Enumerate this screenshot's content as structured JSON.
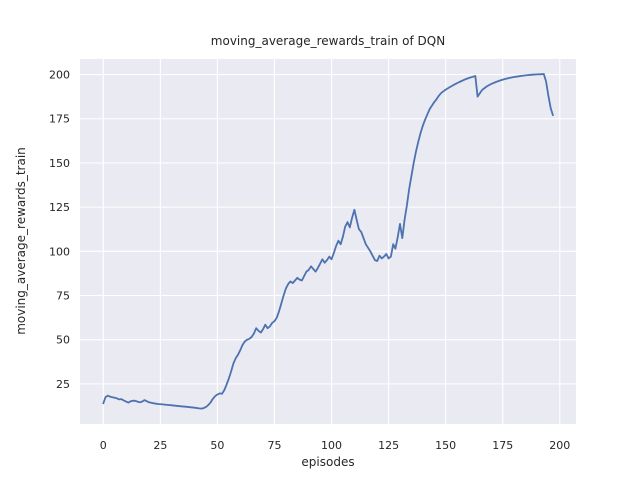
{
  "chart_data": {
    "type": "line",
    "title": "moving_average_rewards_train of DQN",
    "xlabel": "episodes",
    "ylabel": "moving_average_rewards_train",
    "x_ticks": [
      0,
      25,
      50,
      75,
      100,
      125,
      150,
      175,
      200
    ],
    "y_ticks": [
      25,
      50,
      75,
      100,
      125,
      150,
      175,
      200
    ],
    "xlim": [
      -10.2,
      207.1
    ],
    "ylim": [
      2.3,
      208.8
    ],
    "grid": true,
    "legend_position": "none",
    "style": {
      "figure_bg": "#ffffff",
      "plot_bg": "#eaeaf2",
      "grid_color": "#ffffff",
      "line_color": "#4c72b0",
      "text_color": "#262626",
      "line_width": 1.8
    },
    "series": [
      {
        "name": "moving_average_rewards_train",
        "points": [
          [
            0,
            14.0
          ],
          [
            1,
            17.6
          ],
          [
            2,
            18.3
          ],
          [
            3,
            17.8
          ],
          [
            4,
            17.4
          ],
          [
            5,
            17.2
          ],
          [
            6,
            16.8
          ],
          [
            7,
            16.2
          ],
          [
            8,
            16.4
          ],
          [
            9,
            15.6
          ],
          [
            10,
            15.0
          ],
          [
            11,
            14.4
          ],
          [
            12,
            15.2
          ],
          [
            13,
            15.5
          ],
          [
            14,
            15.4
          ],
          [
            15,
            15.0
          ],
          [
            16,
            14.6
          ],
          [
            17,
            15.0
          ],
          [
            18,
            15.8
          ],
          [
            19,
            15.2
          ],
          [
            20,
            14.6
          ],
          [
            21,
            14.3
          ],
          [
            22,
            14.0
          ],
          [
            24,
            13.6
          ],
          [
            26,
            13.4
          ],
          [
            28,
            13.1
          ],
          [
            30,
            12.9
          ],
          [
            32,
            12.6
          ],
          [
            34,
            12.3
          ],
          [
            36,
            12.1
          ],
          [
            38,
            11.8
          ],
          [
            40,
            11.5
          ],
          [
            42,
            11.1
          ],
          [
            43,
            11.0
          ],
          [
            44,
            11.3
          ],
          [
            45,
            12.0
          ],
          [
            46,
            13.0
          ],
          [
            47,
            14.5
          ],
          [
            48,
            16.5
          ],
          [
            49,
            18.0
          ],
          [
            50,
            19.0
          ],
          [
            51,
            19.6
          ],
          [
            52,
            19.4
          ],
          [
            53,
            21.5
          ],
          [
            54,
            24.5
          ],
          [
            55,
            28.0
          ],
          [
            56,
            32.0
          ],
          [
            57,
            36.5
          ],
          [
            58,
            39.5
          ],
          [
            59,
            41.5
          ],
          [
            60,
            44.0
          ],
          [
            61,
            47.0
          ],
          [
            62,
            49.0
          ],
          [
            63,
            50.0
          ],
          [
            64,
            50.5
          ],
          [
            65,
            51.5
          ],
          [
            66,
            53.5
          ],
          [
            67,
            56.5
          ],
          [
            68,
            55.0
          ],
          [
            69,
            54.0
          ],
          [
            70,
            56.0
          ],
          [
            71,
            58.5
          ],
          [
            72,
            56.5
          ],
          [
            73,
            57.5
          ],
          [
            74,
            59.5
          ],
          [
            75,
            60.5
          ],
          [
            76,
            62.5
          ],
          [
            77,
            66.0
          ],
          [
            78,
            70.5
          ],
          [
            79,
            75.0
          ],
          [
            80,
            79.0
          ],
          [
            81,
            81.5
          ],
          [
            82,
            83.0
          ],
          [
            83,
            82.0
          ],
          [
            84,
            83.5
          ],
          [
            85,
            85.0
          ],
          [
            86,
            84.0
          ],
          [
            87,
            83.5
          ],
          [
            88,
            86.0
          ],
          [
            89,
            88.5
          ],
          [
            90,
            89.5
          ],
          [
            91,
            91.5
          ],
          [
            92,
            90.0
          ],
          [
            93,
            88.5
          ],
          [
            94,
            90.5
          ],
          [
            95,
            93.0
          ],
          [
            96,
            95.5
          ],
          [
            97,
            93.5
          ],
          [
            98,
            95.0
          ],
          [
            99,
            97.0
          ],
          [
            100,
            95.5
          ],
          [
            101,
            99.0
          ],
          [
            102,
            103.0
          ],
          [
            103,
            106.0
          ],
          [
            104,
            104.0
          ],
          [
            105,
            108.5
          ],
          [
            106,
            114.0
          ],
          [
            107,
            116.5
          ],
          [
            108,
            113.5
          ],
          [
            109,
            119.0
          ],
          [
            110,
            123.5
          ],
          [
            111,
            118.0
          ],
          [
            112,
            112.5
          ],
          [
            113,
            111.0
          ],
          [
            114,
            107.5
          ],
          [
            115,
            104.0
          ],
          [
            116,
            102.0
          ],
          [
            117,
            100.0
          ],
          [
            118,
            97.5
          ],
          [
            119,
            95.0
          ],
          [
            120,
            94.5
          ],
          [
            121,
            97.5
          ],
          [
            122,
            96.0
          ],
          [
            123,
            97.0
          ],
          [
            124,
            98.5
          ],
          [
            125,
            96.0
          ],
          [
            126,
            97.0
          ],
          [
            127,
            104.0
          ],
          [
            128,
            101.5
          ],
          [
            129,
            108.0
          ],
          [
            130,
            115.5
          ],
          [
            131,
            107.5
          ],
          [
            132,
            118.0
          ],
          [
            133,
            126.0
          ],
          [
            134,
            135.0
          ],
          [
            135,
            142.5
          ],
          [
            136,
            150.0
          ],
          [
            137,
            156.5
          ],
          [
            138,
            162.0
          ],
          [
            139,
            167.0
          ],
          [
            140,
            171.0
          ],
          [
            141,
            174.5
          ],
          [
            142,
            177.5
          ],
          [
            143,
            180.5
          ],
          [
            144,
            182.5
          ],
          [
            145,
            184.5
          ],
          [
            146,
            186.0
          ],
          [
            147,
            188.0
          ],
          [
            148,
            189.5
          ],
          [
            149,
            190.5
          ],
          [
            150,
            191.5
          ],
          [
            152,
            193.0
          ],
          [
            154,
            194.5
          ],
          [
            156,
            195.8
          ],
          [
            158,
            197.0
          ],
          [
            160,
            198.0
          ],
          [
            162,
            198.8
          ],
          [
            163,
            199.2
          ],
          [
            164,
            187.5
          ],
          [
            165,
            189.5
          ],
          [
            166,
            191.3
          ],
          [
            168,
            193.3
          ],
          [
            170,
            194.7
          ],
          [
            172,
            195.8
          ],
          [
            174,
            196.7
          ],
          [
            176,
            197.5
          ],
          [
            178,
            198.1
          ],
          [
            180,
            198.6
          ],
          [
            182,
            199.0
          ],
          [
            184,
            199.4
          ],
          [
            186,
            199.7
          ],
          [
            188,
            199.9
          ],
          [
            190,
            200.1
          ],
          [
            192,
            200.2
          ],
          [
            193,
            200.3
          ],
          [
            194,
            196.0
          ],
          [
            195,
            188.0
          ],
          [
            196,
            181.0
          ],
          [
            197,
            177.0
          ]
        ]
      }
    ]
  }
}
